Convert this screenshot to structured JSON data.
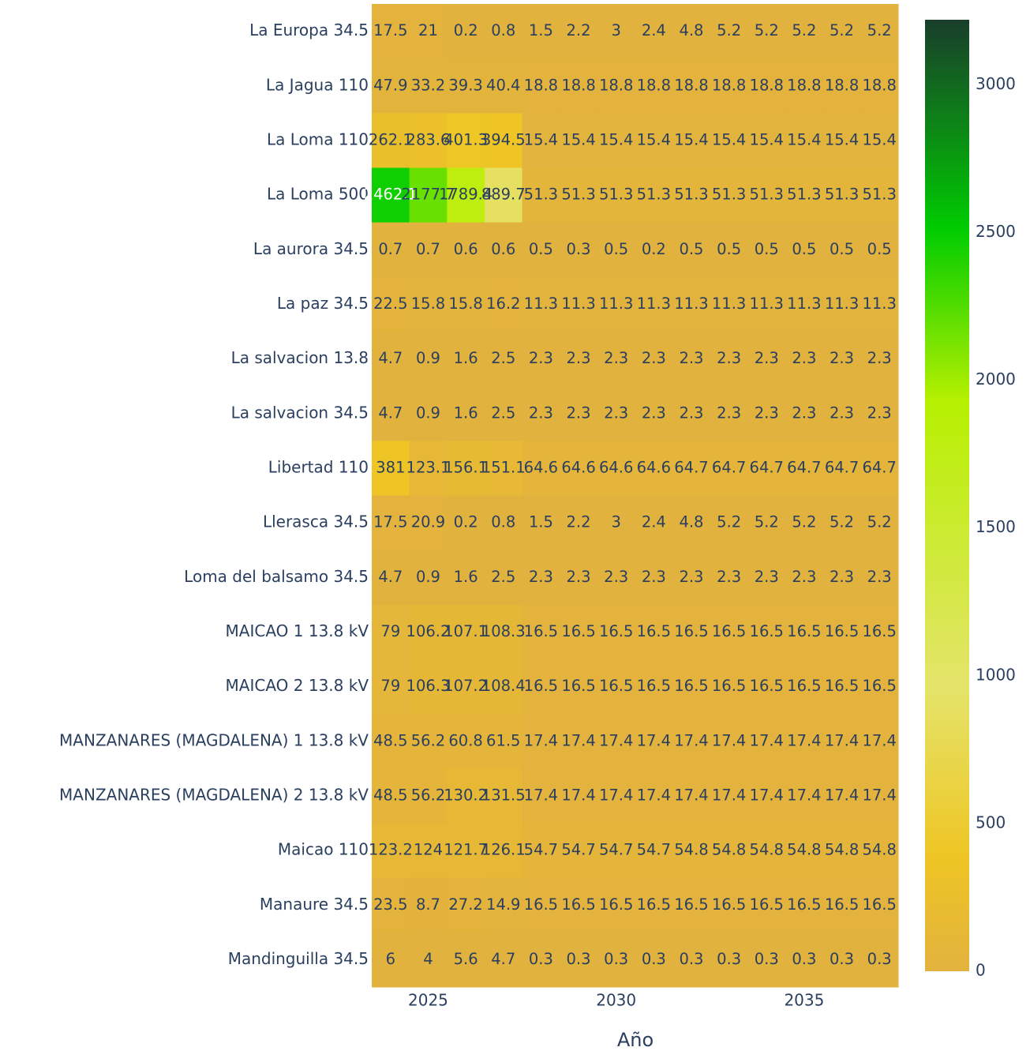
{
  "chart_data": {
    "type": "heatmap",
    "x_axis_label": "Año",
    "x": [
      2024,
      2025,
      2026,
      2027,
      2028,
      2029,
      2030,
      2031,
      2032,
      2033,
      2034,
      2035,
      2036,
      2037
    ],
    "xlim": [
      2023.5,
      2037.5
    ],
    "xticks": [
      2025,
      2030,
      2035
    ],
    "categories": [
      "La Europa 34.5",
      "La Jagua 110",
      "La Loma 110",
      "La Loma 500",
      "La aurora 34.5",
      "La paz 34.5",
      "La salvacion 13.8",
      "La salvacion 34.5",
      "Libertad 110",
      "Llerasca 34.5",
      "Loma del balsamo 34.5",
      "MAICAO 1 13.8 kV",
      "MAICAO 2 13.8 kV",
      "MANZANARES (MAGDALENA) 1 13.8 kV",
      "MANZANARES (MAGDALENA) 2 13.8 kV",
      "Maicao 110",
      "Manaure 34.5",
      "Mandinguilla 34.5"
    ],
    "z": [
      [
        17.5,
        21,
        0.2,
        0.8,
        1.5,
        2.2,
        3,
        2.4,
        4.8,
        5.2,
        5.2,
        5.2,
        5.2,
        5.2
      ],
      [
        47.9,
        33.2,
        39.3,
        40.4,
        18.8,
        18.8,
        18.8,
        18.8,
        18.8,
        18.8,
        18.8,
        18.8,
        18.8,
        18.8
      ],
      [
        262.1,
        283.6,
        401.3,
        394.5,
        15.4,
        15.4,
        15.4,
        15.4,
        15.4,
        15.4,
        15.4,
        15.4,
        15.4,
        15.4
      ],
      [
        2462.1,
        2177.7,
        1789.4,
        889.7,
        51.3,
        51.3,
        51.3,
        51.3,
        51.3,
        51.3,
        51.3,
        51.3,
        51.3,
        51.3
      ],
      [
        0.7,
        0.7,
        0.6,
        0.6,
        0.5,
        0.3,
        0.5,
        0.2,
        0.5,
        0.5,
        0.5,
        0.5,
        0.5,
        0.5
      ],
      [
        22.5,
        15.8,
        15.8,
        16.2,
        11.3,
        11.3,
        11.3,
        11.3,
        11.3,
        11.3,
        11.3,
        11.3,
        11.3,
        11.3
      ],
      [
        4.7,
        0.9,
        1.6,
        2.5,
        2.3,
        2.3,
        2.3,
        2.3,
        2.3,
        2.3,
        2.3,
        2.3,
        2.3,
        2.3
      ],
      [
        4.7,
        0.9,
        1.6,
        2.5,
        2.3,
        2.3,
        2.3,
        2.3,
        2.3,
        2.3,
        2.3,
        2.3,
        2.3,
        2.3
      ],
      [
        381,
        123.1,
        156.1,
        151.1,
        64.6,
        64.6,
        64.6,
        64.6,
        64.7,
        64.7,
        64.7,
        64.7,
        64.7,
        64.7
      ],
      [
        17.5,
        20.9,
        0.2,
        0.8,
        1.5,
        2.2,
        3,
        2.4,
        4.8,
        5.2,
        5.2,
        5.2,
        5.2,
        5.2
      ],
      [
        4.7,
        0.9,
        1.6,
        2.5,
        2.3,
        2.3,
        2.3,
        2.3,
        2.3,
        2.3,
        2.3,
        2.3,
        2.3,
        2.3
      ],
      [
        79,
        106.2,
        107.1,
        108.3,
        16.5,
        16.5,
        16.5,
        16.5,
        16.5,
        16.5,
        16.5,
        16.5,
        16.5,
        16.5
      ],
      [
        79,
        106.3,
        107.2,
        108.4,
        16.5,
        16.5,
        16.5,
        16.5,
        16.5,
        16.5,
        16.5,
        16.5,
        16.5,
        16.5
      ],
      [
        48.5,
        56.2,
        60.8,
        61.5,
        17.4,
        17.4,
        17.4,
        17.4,
        17.4,
        17.4,
        17.4,
        17.4,
        17.4,
        17.4
      ],
      [
        48.5,
        56.2,
        130.2,
        131.5,
        17.4,
        17.4,
        17.4,
        17.4,
        17.4,
        17.4,
        17.4,
        17.4,
        17.4,
        17.4
      ],
      [
        123.2,
        124,
        121.7,
        126.1,
        54.7,
        54.7,
        54.7,
        54.7,
        54.8,
        54.8,
        54.8,
        54.8,
        54.8,
        54.8
      ],
      [
        23.5,
        8.7,
        27.2,
        14.9,
        16.5,
        16.5,
        16.5,
        16.5,
        16.5,
        16.5,
        16.5,
        16.5,
        16.5,
        16.5
      ],
      [
        6,
        4,
        5.6,
        4.7,
        0.3,
        0.3,
        0.3,
        0.3,
        0.3,
        0.3,
        0.3,
        0.3,
        0.3,
        0.3
      ]
    ],
    "zlim": [
      0,
      3220
    ],
    "zticks": [
      0,
      500,
      1000,
      1500,
      2000,
      2500,
      3000
    ],
    "colorscale": [
      [
        0,
        "#e2b23e"
      ],
      [
        0.12,
        "#eec524"
      ],
      [
        0.3,
        "#e4e46a"
      ],
      [
        0.6,
        "#b6f000"
      ],
      [
        0.78,
        "#00cc00"
      ],
      [
        1,
        "#193d2c"
      ]
    ]
  }
}
